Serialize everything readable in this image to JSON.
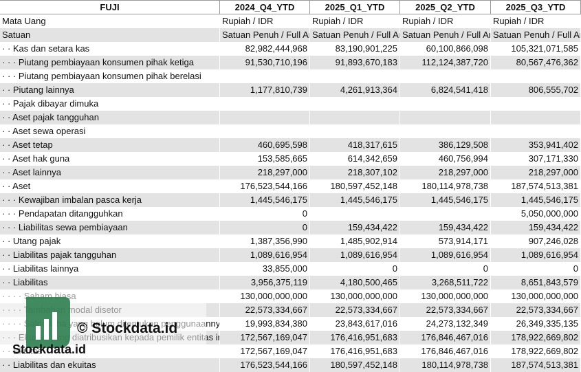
{
  "header": [
    "FUJI",
    "2024_Q4_YTD",
    "2025_Q1_YTD",
    "2025_Q2_YTD",
    "2025_Q3_YTD"
  ],
  "rows": [
    [
      "Mata Uang",
      "Rupiah / IDR",
      "Rupiah / IDR",
      "Rupiah / IDR",
      "Rupiah / IDR"
    ],
    [
      "Satuan",
      "Satuan Penuh / Full Amount",
      "Satuan Penuh / Full Amount",
      "Satuan Penuh / Full Amount",
      "Satuan Penuh / Full Amount"
    ],
    [
      "· · Kas dan setara kas",
      "82,982,444,968",
      "83,190,901,225",
      "60,100,866,098",
      "105,321,071,585"
    ],
    [
      "· · · Piutang pembiayaan konsumen pihak ketiga",
      "91,530,710,196",
      "91,893,670,183",
      "112,124,387,720",
      "80,567,476,362"
    ],
    [
      "· · · Piutang pembiayaan konsumen pihak berelasi",
      null,
      null,
      null,
      null
    ],
    [
      "· · Piutang lainnya",
      "1,177,810,739",
      "4,261,913,364",
      "6,824,541,418",
      "806,555,702"
    ],
    [
      "· · Pajak dibayar dimuka",
      null,
      null,
      null,
      null
    ],
    [
      "· · Aset pajak tangguhan",
      null,
      null,
      null,
      null
    ],
    [
      "· · Aset sewa operasi",
      null,
      null,
      null,
      null
    ],
    [
      "· · Aset tetap",
      "460,695,598",
      "418,317,615",
      "386,129,508",
      "353,941,402"
    ],
    [
      "· · Aset hak guna",
      "153,585,665",
      "614,342,659",
      "460,756,994",
      "307,171,330"
    ],
    [
      "· · Aset lainnya",
      "218,297,000",
      "218,307,102",
      "218,297,000",
      "218,297,000"
    ],
    [
      "· · Aset",
      "176,523,544,166",
      "180,597,452,148",
      "180,114,978,738",
      "187,574,513,381"
    ],
    [
      "· · · Kewajiban imbalan pasca kerja",
      "1,445,546,175",
      "1,445,546,175",
      "1,445,546,175",
      "1,445,546,175"
    ],
    [
      "· · · Pendapatan ditangguhkan",
      "0",
      null,
      null,
      "5,050,000,000"
    ],
    [
      "· · · Liabilitas sewa pembiayaan",
      "0",
      "159,434,422",
      "159,434,422",
      "159,434,422"
    ],
    [
      "· · Utang pajak",
      "1,387,356,990",
      "1,485,902,914",
      "573,914,171",
      "907,246,028"
    ],
    [
      "· · Liabilitas pajak tangguhan",
      "1,089,616,954",
      "1,089,616,954",
      "1,089,616,954",
      "1,089,616,954"
    ],
    [
      "· · Liabilitas lainnya",
      "33,855,000",
      "0",
      "0",
      "0"
    ],
    [
      "· · Liabilitas",
      "3,956,375,119",
      "4,180,500,465",
      "3,268,511,722",
      "8,651,843,579"
    ],
    [
      "· · · · Saham biasa",
      "130,000,000,000",
      "130,000,000,000",
      "130,000,000,000",
      "130,000,000,000"
    ],
    [
      "· · · · Tambahan modal disetor",
      "22,573,334,667",
      "22,573,334,667",
      "22,573,334,667",
      "22,573,334,667"
    ],
    [
      "· · · · Saldo laba yang belum ditentukan penggunaannya",
      "19,993,834,380",
      "23,843,617,016",
      "24,273,132,349",
      "26,349,335,135"
    ],
    [
      "· · · Ekuitas yang diatribusikan kepada pemilik entitas induk",
      "172,567,169,047",
      "176,416,951,683",
      "176,846,467,016",
      "178,922,669,802"
    ],
    [
      "· · Ekuitas",
      "172,567,169,047",
      "176,416,951,683",
      "176,846,467,016",
      "178,922,669,802"
    ],
    [
      "· · Liabilitas dan ekuitas",
      "176,523,544,166",
      "180,597,452,148",
      "180,114,978,738",
      "187,574,513,381"
    ]
  ],
  "watermark": {
    "text": "© Stockdata.id",
    "logo_text": "Stockdata.id"
  }
}
